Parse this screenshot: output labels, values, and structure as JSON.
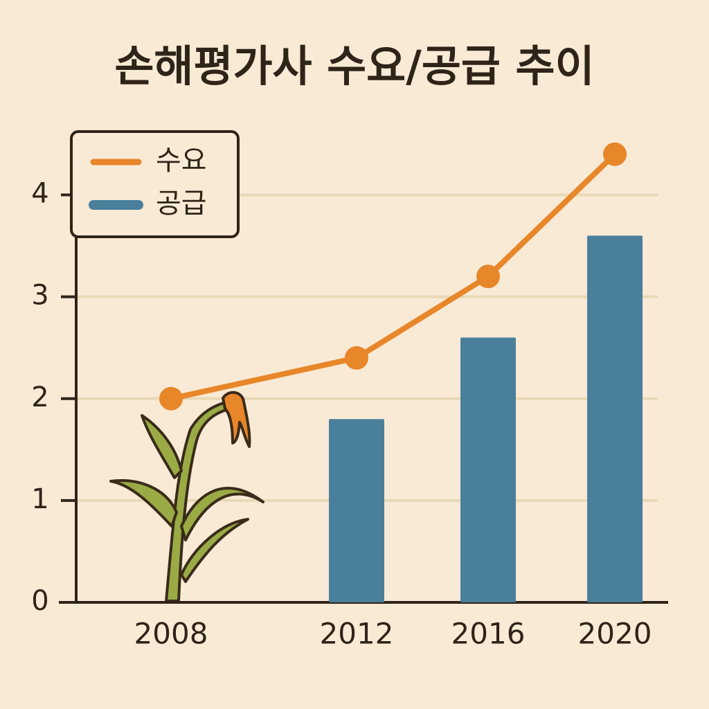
{
  "chart_data": {
    "type": "bar_line",
    "title": "손해평가사 수요/공급 추이",
    "categories": [
      "2008",
      "2012",
      "2016",
      "2020"
    ],
    "series": [
      {
        "name": "수요",
        "type": "line",
        "color": "#e8862a",
        "values": [
          2.0,
          2.4,
          3.2,
          4.4
        ]
      },
      {
        "name": "공급",
        "type": "bar",
        "color": "#4a7f9b",
        "values": [
          null,
          1.8,
          2.6,
          3.6
        ]
      }
    ],
    "ylim": [
      0,
      4.5
    ],
    "yticks": [
      0,
      1,
      2,
      3,
      4
    ],
    "grid": true,
    "legend": "upper-left"
  }
}
